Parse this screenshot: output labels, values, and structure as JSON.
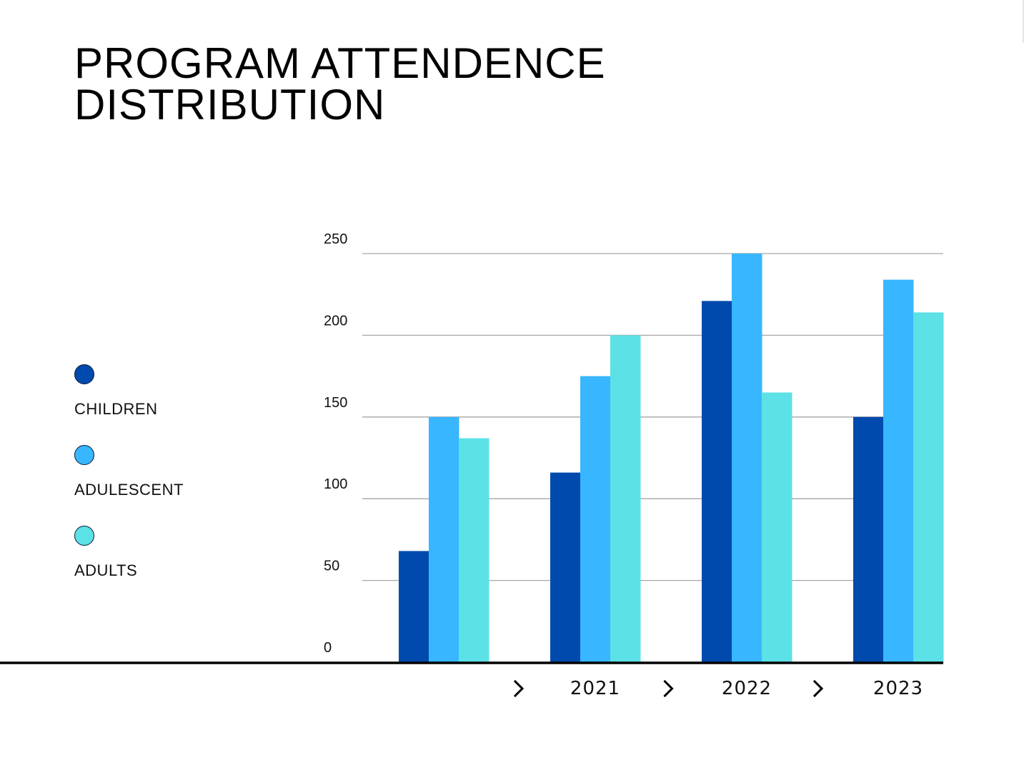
{
  "title": {
    "line1": "PROGRAM ATTENDENCE",
    "line2": "DISTRIBUTION"
  },
  "colors": {
    "children": "#004aad",
    "adolescent": "#38b6ff",
    "adults": "#5ce1e6",
    "axis": "#000000",
    "grid": "#a6a6a6"
  },
  "legend": [
    {
      "label": "CHILDREN",
      "color": "#004aad"
    },
    {
      "label": "ADULESCENT",
      "color": "#38b6ff"
    },
    {
      "label": "ADULTS",
      "color": "#5ce1e6"
    }
  ],
  "chart_data": {
    "type": "bar",
    "categories": [
      "",
      "2021",
      "2022",
      "2023"
    ],
    "series": [
      {
        "name": "CHILDREN",
        "values": [
          68,
          116,
          221,
          150
        ]
      },
      {
        "name": "ADULESCENT",
        "values": [
          150,
          175,
          250,
          234
        ]
      },
      {
        "name": "ADULTS",
        "values": [
          137,
          200,
          165,
          214
        ]
      }
    ],
    "ylim": [
      0,
      250
    ],
    "yticks": [
      0,
      50,
      100,
      150,
      200,
      250
    ],
    "grid": true,
    "legend_position": "left",
    "separator_icon": "chevron-right-icon"
  }
}
